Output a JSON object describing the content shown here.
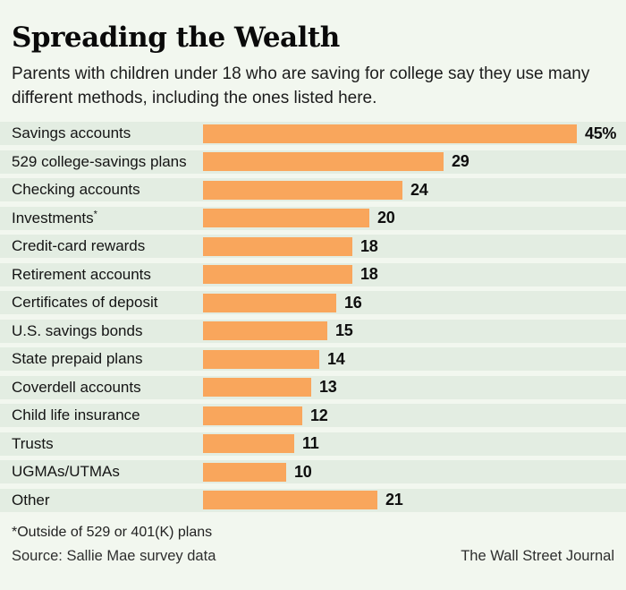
{
  "header": {
    "title": "Spreading the Wealth",
    "subtitle": "Parents with children under 18 who are saving for college say they use many different methods, including the ones listed here."
  },
  "chart_data": {
    "type": "bar",
    "orientation": "horizontal",
    "title": "Spreading the Wealth",
    "subtitle": "Parents with children under 18 who are saving for college say they use many different methods, including the ones listed here.",
    "unit": "percent of parents",
    "xlim": [
      0,
      48
    ],
    "grid": false,
    "legend": "none",
    "categories": [
      "Savings accounts",
      "529 college-savings plans",
      "Checking accounts",
      "Investments*",
      "Credit-card rewards",
      "Retirement accounts",
      "Certificates of deposit",
      "U.S. savings bonds",
      "State prepaid plans",
      "Coverdell accounts",
      "Child life insurance",
      "Trusts",
      "UGMAs/UTMAs",
      "Other"
    ],
    "values": [
      45,
      29,
      24,
      20,
      18,
      18,
      16,
      15,
      14,
      13,
      12,
      11,
      10,
      21
    ],
    "value_labels": [
      "45%",
      "29",
      "24",
      "20",
      "18",
      "18",
      "16",
      "15",
      "14",
      "13",
      "12",
      "11",
      "10",
      "21"
    ],
    "bar_color": "#f9a65c",
    "band_color": "#e3ede2",
    "background_color": "#f2f7ef"
  },
  "footer": {
    "footnote": "*Outside of 529 or 401(K) plans",
    "source": "Source: Sallie Mae survey data",
    "credit": "The Wall Street Journal"
  }
}
